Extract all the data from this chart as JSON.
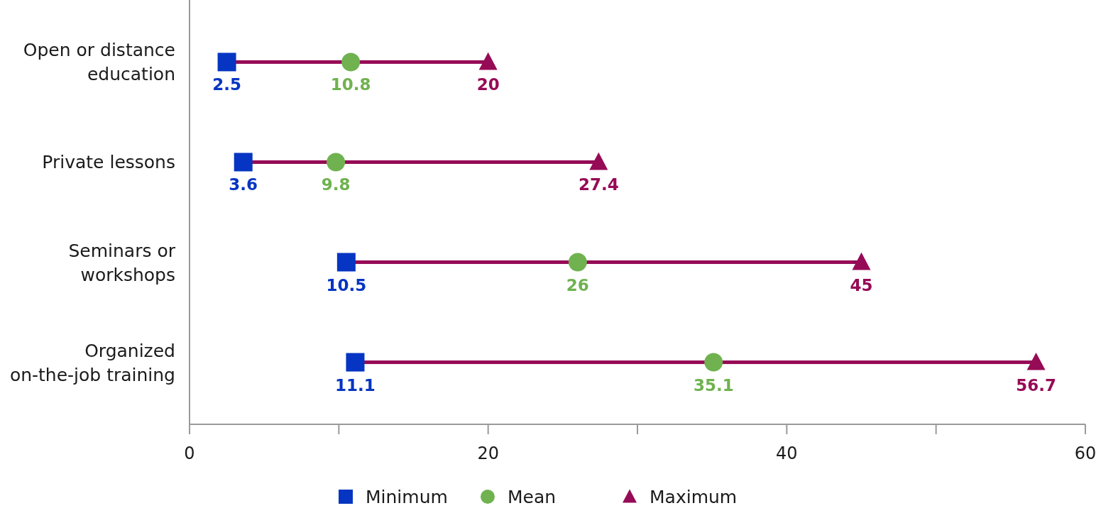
{
  "chart_data": {
    "type": "scatter",
    "orientation": "horizontal",
    "legend": "bottom",
    "categories": [
      "Open or distance education",
      "Private lessons",
      "Seminars or workshops",
      "Organized on-the-job training"
    ],
    "xlim": [
      0,
      60
    ],
    "xticks": [
      0,
      {
        "value": 10,
        "label": null
      },
      20,
      {
        "value": 30,
        "label": null
      },
      40,
      {
        "value": 50,
        "label": null
      },
      60
    ],
    "series": [
      {
        "type": "bar",
        "color": "#960b56",
        "base": [
          2.5,
          3.6,
          10.5,
          11.1
        ],
        "values": [
          17.5,
          23.8,
          34.5,
          45.6
        ]
      },
      {
        "name": "Minimum",
        "marker": "square",
        "color": "#0535c2",
        "values": [
          2.5,
          3.6,
          10.5,
          11.1
        ],
        "value_labels": [
          "2.5",
          "3.6",
          "10.5",
          "11.1"
        ]
      },
      {
        "name": "Mean",
        "marker": "circle",
        "color": "#6fb24f",
        "values": [
          10.8,
          9.8,
          26,
          35.1
        ],
        "value_labels": [
          "10.8",
          "9.8",
          "26",
          "35.1"
        ]
      },
      {
        "name": "Maximum",
        "marker": "triangle",
        "color": "#960b56",
        "values": [
          20,
          27.4,
          45,
          56.7
        ],
        "value_labels": [
          "20",
          "27.4",
          "45",
          "56.7"
        ]
      }
    ]
  }
}
